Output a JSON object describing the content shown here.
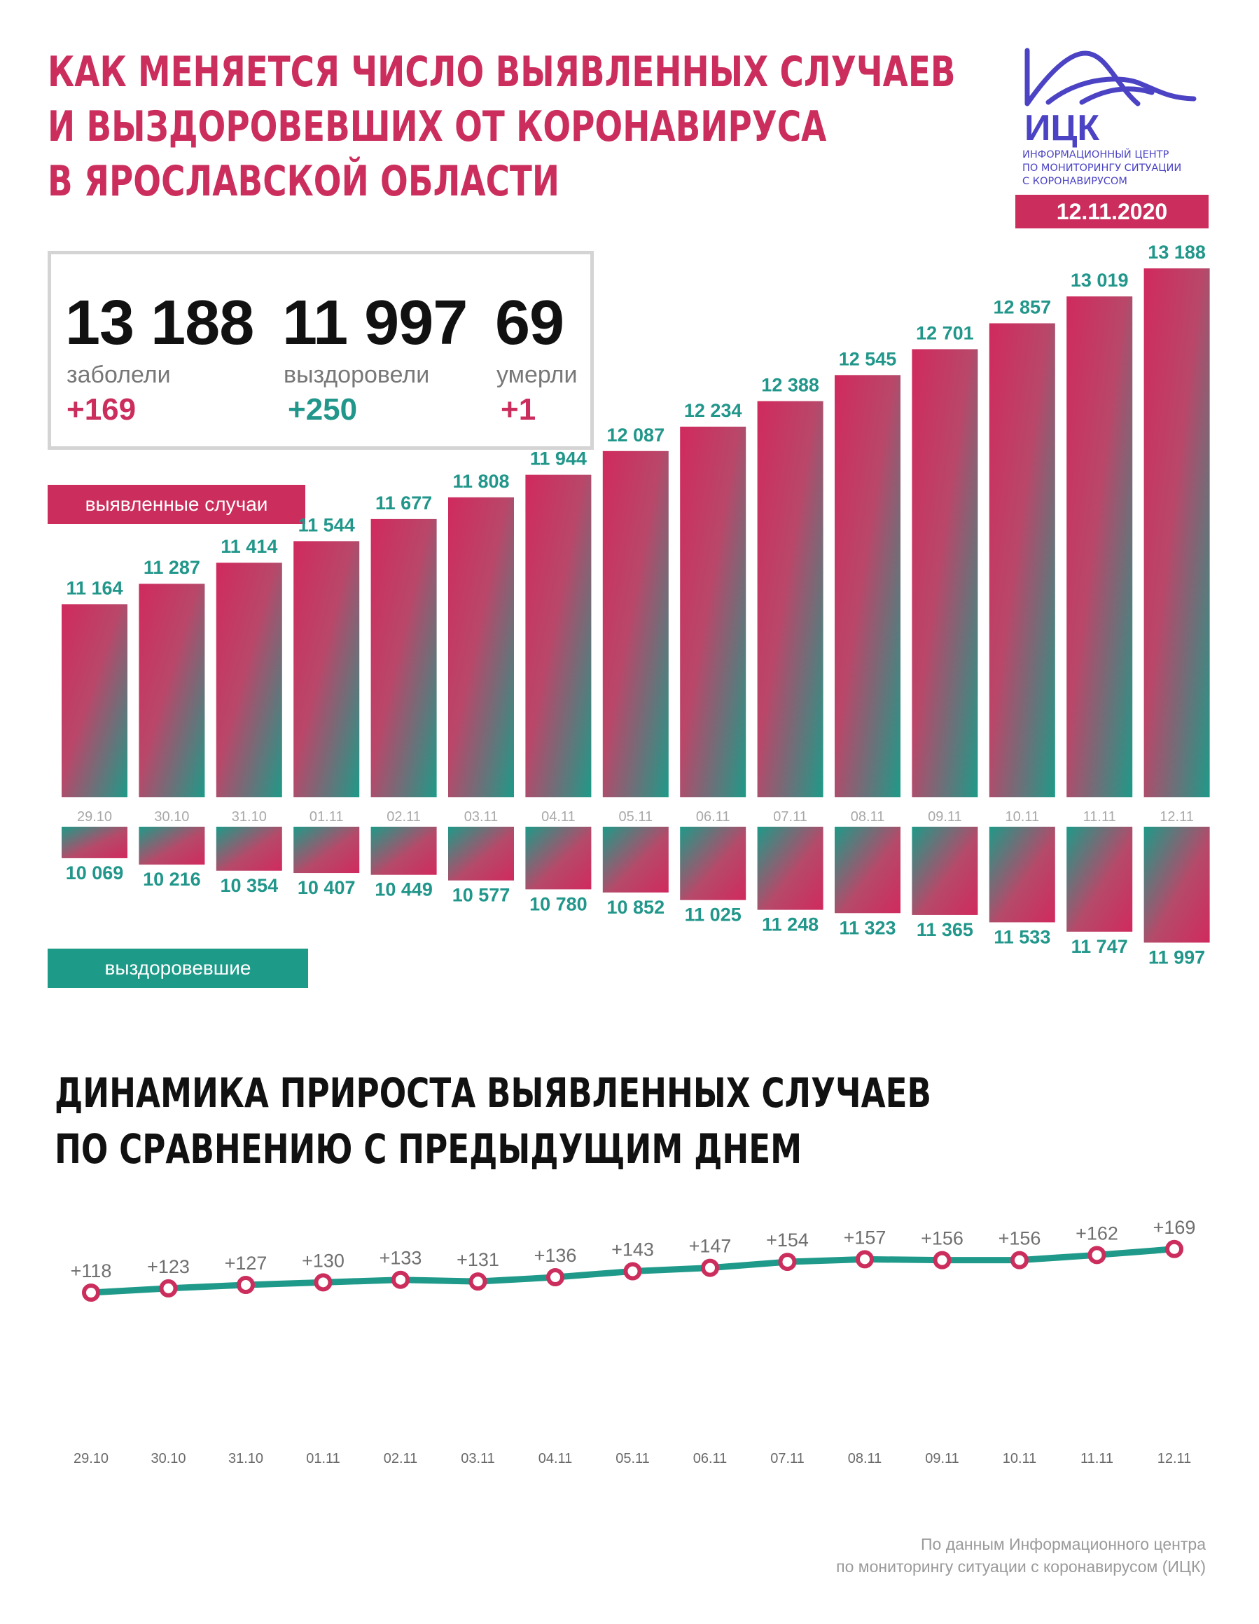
{
  "header": {
    "title_lines": [
      "КАК МЕНЯЕТСЯ ЧИСЛО ВЫЯВЛЕННЫХ СЛУЧАЕВ",
      "И ВЫЗДОРОВЕВШИХ ОТ КОРОНАВИРУСА",
      "В ЯРОСЛАВСКОЙ ОБЛАСТИ"
    ],
    "logo": {
      "abbr": "ИЦК",
      "lines": [
        "ИНФОРМАЦИОННЫЙ ЦЕНТР",
        "ПО МОНИТОРИНГУ СИТУАЦИИ",
        "С КОРОНАВИРУСОМ"
      ],
      "color": "#4b43c4"
    },
    "date": "12.11.2020"
  },
  "stats": {
    "cases": {
      "value": "13 188",
      "label": "заболели",
      "delta": "+169"
    },
    "recovered": {
      "value": "11 997",
      "label": "выздоровели",
      "delta": "+250"
    },
    "deaths": {
      "value": "69",
      "label": "умерли",
      "delta": "+1"
    }
  },
  "legend": {
    "cases": "выявленные случаи",
    "recovered": "выздоровевшие"
  },
  "colors": {
    "cases": "#cb2e5d",
    "recovered": "#1e9a88",
    "line": "#1f9a8a"
  },
  "chart_data": [
    {
      "type": "bar",
      "categories": [
        "29.10",
        "30.10",
        "31.10",
        "01.11",
        "02.11",
        "03.11",
        "04.11",
        "05.11",
        "06.11",
        "07.11",
        "08.11",
        "09.11",
        "10.11",
        "11.11",
        "12.11"
      ],
      "series": [
        {
          "name": "выявленные случаи",
          "values": [
            11164,
            11287,
            11414,
            11544,
            11677,
            11808,
            11944,
            12087,
            12234,
            12388,
            12545,
            12701,
            12857,
            13019,
            13188
          ],
          "labels": [
            "11 164",
            "11 287",
            "11 414",
            "11 544",
            "11 677",
            "11 808",
            "11 944",
            "12 087",
            "12 234",
            "12 388",
            "12 545",
            "12 701",
            "12 857",
            "13 019",
            "13 188"
          ]
        },
        {
          "name": "выздоровевшие",
          "values": [
            10069,
            10216,
            10354,
            10407,
            10449,
            10577,
            10780,
            10852,
            11025,
            11248,
            11323,
            11365,
            11533,
            11747,
            11997
          ],
          "labels": [
            "10 069",
            "10 216",
            "10 354",
            "10 407",
            "10 449",
            "10 577",
            "10 780",
            "10 852",
            "11 025",
            "11 248",
            "11 323",
            "11 365",
            "11 533",
            "11 747",
            "11 997"
          ]
        }
      ]
    },
    {
      "type": "line",
      "title": "ДИНАМИКА ПРИРОСТА ВЫЯВЛЕННЫХ СЛУЧАЕВ ПО СРАВНЕНИЮ С ПРЕДЫДУЩИМ ДНЕМ",
      "title_lines": [
        "ДИНАМИКА ПРИРОСТА ВЫЯВЛЕННЫХ СЛУЧАЕВ",
        "ПО СРАВНЕНИЮ С ПРЕДЫДУЩИМ ДНЕМ"
      ],
      "categories": [
        "29.10",
        "30.10",
        "31.10",
        "01.11",
        "02.11",
        "03.11",
        "04.11",
        "05.11",
        "06.11",
        "07.11",
        "08.11",
        "09.11",
        "10.11",
        "11.11",
        "12.11"
      ],
      "values": [
        118,
        123,
        127,
        130,
        133,
        131,
        136,
        143,
        147,
        154,
        157,
        156,
        156,
        162,
        169
      ],
      "labels": [
        "+118",
        "+123",
        "+127",
        "+130",
        "+133",
        "+131",
        "+136",
        "+143",
        "+147",
        "+154",
        "+157",
        "+156",
        "+156",
        "+162",
        "+169"
      ]
    }
  ],
  "source_lines": [
    "По данным Информационного центра",
    "по мониторингу ситуации с коронавирусом (ИЦК)"
  ]
}
